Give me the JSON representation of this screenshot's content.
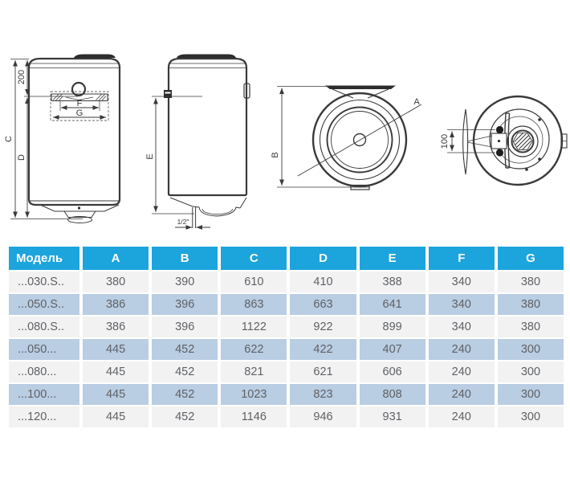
{
  "diagram": {
    "labels": {
      "total_height": "C",
      "lower_height": "D",
      "top_offset": "200",
      "bracket_inner": "F",
      "bracket_outer": "G",
      "side_height": "E",
      "pipe_size": "1/2\"",
      "diameter": "A",
      "depth": "B",
      "mount_spacing": "100"
    }
  },
  "table": {
    "columns": [
      "Модель",
      "A",
      "B",
      "C",
      "D",
      "E",
      "F",
      "G"
    ],
    "rows": [
      {
        "model": "...030.S..",
        "values": [
          "380",
          "390",
          "610",
          "410",
          "388",
          "340",
          "380"
        ]
      },
      {
        "model": "...050.S..",
        "values": [
          "386",
          "396",
          "863",
          "663",
          "641",
          "340",
          "380"
        ]
      },
      {
        "model": "...080.S..",
        "values": [
          "386",
          "396",
          "1122",
          "922",
          "899",
          "340",
          "380"
        ]
      },
      {
        "model": "...050...",
        "values": [
          "445",
          "452",
          "622",
          "422",
          "407",
          "240",
          "300"
        ]
      },
      {
        "model": "...080...",
        "values": [
          "445",
          "452",
          "821",
          "621",
          "606",
          "240",
          "300"
        ]
      },
      {
        "model": "...100...",
        "values": [
          "445",
          "452",
          "1023",
          "823",
          "808",
          "240",
          "300"
        ]
      },
      {
        "model": "...120...",
        "values": [
          "445",
          "452",
          "1146",
          "946",
          "931",
          "240",
          "300"
        ]
      }
    ]
  },
  "colors": {
    "header_bg": "#1ca4dc",
    "header_text": "#ffffff",
    "row_gray": "#f2f2f3",
    "row_blue": "#b9cde3",
    "cell_text": "#5f6164",
    "line_color": "#3a3a3a"
  }
}
